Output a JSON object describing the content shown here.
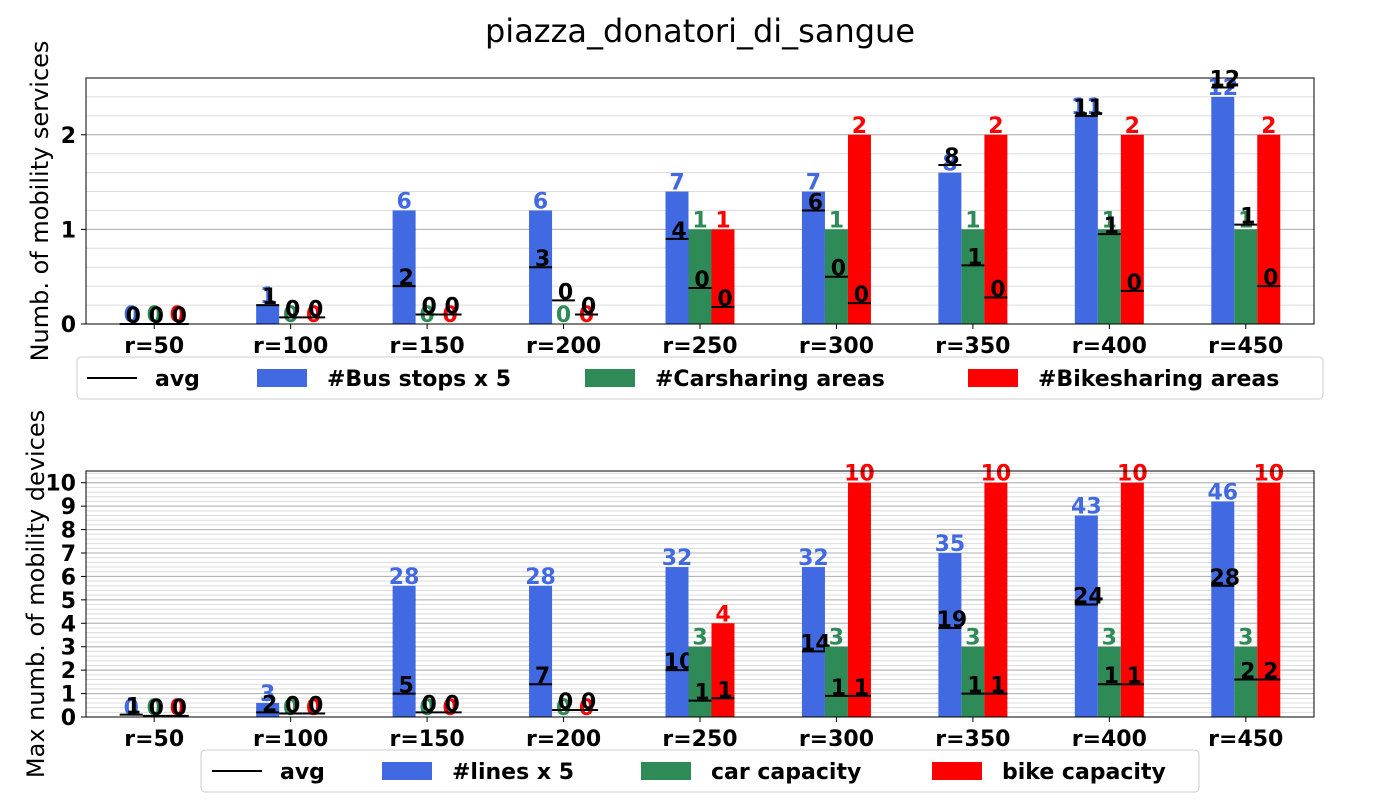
{
  "title": "piazza_donatori_di_sangue",
  "colors": {
    "bus": "#4169e1",
    "car": "#2e8b57",
    "bike": "#ff0000",
    "avg": "#000000"
  },
  "chart_data": [
    {
      "type": "bar",
      "ylabel": "Numb. of mobility services",
      "categories": [
        "r=50",
        "r=100",
        "r=150",
        "r=200",
        "r=250",
        "r=300",
        "r=350",
        "r=400",
        "r=450"
      ],
      "ylim": [
        0,
        2.6
      ],
      "yticks": [
        "0",
        "1",
        "2"
      ],
      "ytick_values": [
        0,
        1,
        2
      ],
      "minor_step": 0.2,
      "legend": {
        "placement": "below",
        "entries": [
          "avg",
          "#Bus stops x 5",
          "#Carsharing areas",
          "#Bikesharing areas"
        ]
      },
      "series": [
        {
          "name": "#Bus stops x 5",
          "color": "bus",
          "values": [
            0,
            0.2,
            1.2,
            1.2,
            1.4,
            1.4,
            1.6,
            2.2,
            2.4
          ],
          "labels": [
            "0",
            "1",
            "6",
            "6",
            "7",
            "7",
            "8",
            "11",
            "12"
          ]
        },
        {
          "name": "#Carsharing areas",
          "color": "car",
          "values": [
            0,
            0,
            0,
            0,
            1,
            1,
            1,
            1,
            1
          ],
          "labels": [
            "0",
            "0",
            "0",
            "0",
            "1",
            "1",
            "1",
            "1",
            "1"
          ]
        },
        {
          "name": "#Bikesharing areas",
          "color": "bike",
          "values": [
            0,
            0,
            0,
            0,
            1,
            2,
            2,
            2,
            2
          ],
          "labels": [
            "0",
            "0",
            "0",
            "0",
            "1",
            "2",
            "2",
            "2",
            "2"
          ]
        }
      ],
      "avg": [
        {
          "values": [
            0,
            0.2,
            0.4,
            0.6,
            0.9,
            1.2,
            1.68,
            2.2,
            2.5
          ],
          "labels": [
            "0",
            "1",
            "2",
            "3",
            "4",
            "6",
            "8",
            "11",
            "12"
          ]
        },
        {
          "values": [
            0,
            0.07,
            0.1,
            0.25,
            0.38,
            0.5,
            0.62,
            0.95,
            1.05
          ],
          "labels": [
            "0",
            "0",
            "0",
            "0",
            "0",
            "0",
            "1",
            "1",
            "1"
          ]
        },
        {
          "values": [
            0,
            0.07,
            0.1,
            0.1,
            0.18,
            0.22,
            0.28,
            0.35,
            0.4
          ],
          "labels": [
            "0",
            "0",
            "0",
            "0",
            "0",
            "0",
            "0",
            "0",
            "0"
          ]
        }
      ]
    },
    {
      "type": "bar",
      "ylabel": "Max numb. of mobility devices",
      "categories": [
        "r=50",
        "r=100",
        "r=150",
        "r=200",
        "r=250",
        "r=300",
        "r=350",
        "r=400",
        "r=450"
      ],
      "ylim": [
        0,
        10.5
      ],
      "yticks": [
        "0",
        "1",
        "2",
        "3",
        "4",
        "5",
        "6",
        "7",
        "8",
        "9",
        "10"
      ],
      "ytick_values": [
        0,
        1,
        2,
        3,
        4,
        5,
        6,
        7,
        8,
        9,
        10
      ],
      "minor_step": 0.2,
      "legend": {
        "placement": "below",
        "entries": [
          "avg",
          "#lines x 5",
          "car capacity",
          "bike capacity"
        ]
      },
      "series": [
        {
          "name": "#lines x 5",
          "color": "bus",
          "values": [
            0,
            0.6,
            5.6,
            5.6,
            6.4,
            6.4,
            7.0,
            8.6,
            9.2
          ],
          "labels": [
            "0",
            "3",
            "28",
            "28",
            "32",
            "32",
            "35",
            "43",
            "46"
          ]
        },
        {
          "name": "car capacity",
          "color": "car",
          "values": [
            0,
            0,
            0,
            0,
            3,
            3,
            3,
            3,
            3
          ],
          "labels": [
            "0",
            "0",
            "0",
            "0",
            "3",
            "3",
            "3",
            "3",
            "3"
          ]
        },
        {
          "name": "bike capacity",
          "color": "bike",
          "values": [
            0,
            0,
            0,
            0,
            4,
            10,
            10,
            10,
            10
          ],
          "labels": [
            "0",
            "0",
            "0",
            "0",
            "4",
            "10",
            "10",
            "10",
            "10"
          ]
        }
      ],
      "avg": [
        {
          "values": [
            0.1,
            0.2,
            1.0,
            1.4,
            2.0,
            2.8,
            3.8,
            4.8,
            5.6
          ],
          "labels": [
            "1",
            "2",
            "5",
            "7",
            "10",
            "14",
            "19",
            "24",
            "28"
          ]
        },
        {
          "values": [
            0.05,
            0.15,
            0.2,
            0.3,
            0.7,
            0.9,
            1.0,
            1.4,
            1.6
          ],
          "labels": [
            "0",
            "0",
            "0",
            "0",
            "1",
            "1",
            "1",
            "1",
            "2"
          ]
        },
        {
          "values": [
            0.05,
            0.15,
            0.2,
            0.3,
            0.8,
            0.9,
            1.0,
            1.4,
            1.6
          ],
          "labels": [
            "0",
            "0",
            "0",
            "0",
            "1",
            "1",
            "1",
            "1",
            "2"
          ]
        }
      ]
    }
  ]
}
